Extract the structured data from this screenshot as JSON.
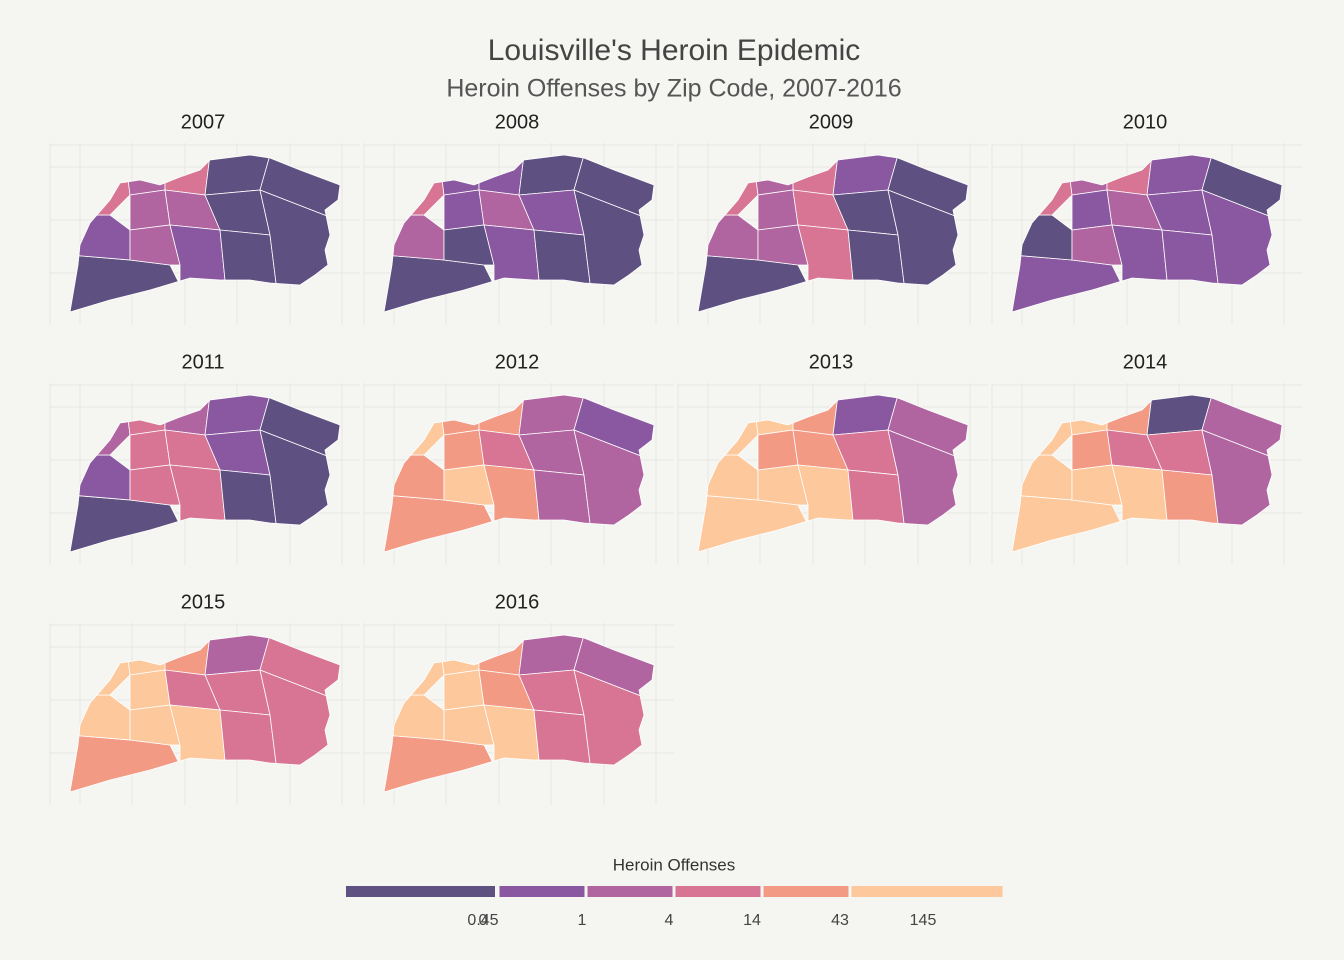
{
  "title": "Louisville's Heroin Epidemic",
  "subtitle": "Heroin Offenses by Zip Code, 2007-2016",
  "facets": [
    {
      "title": "2007",
      "fills": [
        0,
        1,
        3,
        2,
        2,
        2,
        3,
        2,
        1,
        0,
        0,
        0,
        0,
        0
      ]
    },
    {
      "title": "2008",
      "fills": [
        0,
        2,
        3,
        1,
        1,
        0,
        1,
        2,
        1,
        0,
        1,
        0,
        0,
        0
      ]
    },
    {
      "title": "2009",
      "fills": [
        0,
        2,
        3,
        2,
        2,
        2,
        3,
        3,
        3,
        1,
        0,
        0,
        0,
        0
      ]
    },
    {
      "title": "2010",
      "fills": [
        1,
        0,
        3,
        2,
        1,
        2,
        3,
        2,
        1,
        1,
        1,
        1,
        0,
        1
      ]
    },
    {
      "title": "2011",
      "fills": [
        0,
        1,
        2,
        3,
        3,
        3,
        2,
        3,
        3,
        1,
        1,
        0,
        0,
        0
      ]
    },
    {
      "title": "2012",
      "fills": [
        4,
        4,
        5,
        4,
        4,
        5,
        4,
        3,
        4,
        2,
        2,
        2,
        1,
        2
      ]
    },
    {
      "title": "2013",
      "fills": [
        5,
        5,
        5,
        5,
        4,
        5,
        4,
        4,
        5,
        1,
        3,
        3,
        2,
        2
      ]
    },
    {
      "title": "2014",
      "fills": [
        5,
        5,
        5,
        5,
        4,
        5,
        4,
        3,
        5,
        0,
        3,
        4,
        2,
        2
      ]
    },
    {
      "title": "2015",
      "fills": [
        4,
        5,
        5,
        5,
        5,
        5,
        4,
        3,
        5,
        2,
        3,
        3,
        3,
        3
      ]
    },
    {
      "title": "2016",
      "fills": [
        4,
        5,
        5,
        5,
        5,
        5,
        4,
        4,
        5,
        2,
        3,
        3,
        2,
        3
      ]
    }
  ],
  "legend": {
    "title": "Heroin Offenses",
    "colors": [
      "#5e5080",
      "#8a58a0",
      "#b064a0",
      "#d87494",
      "#f29a84",
      "#fcc89c"
    ],
    "labels": [
      "0",
      "0.45",
      "1",
      "4",
      "14",
      "43",
      "145"
    ]
  }
}
